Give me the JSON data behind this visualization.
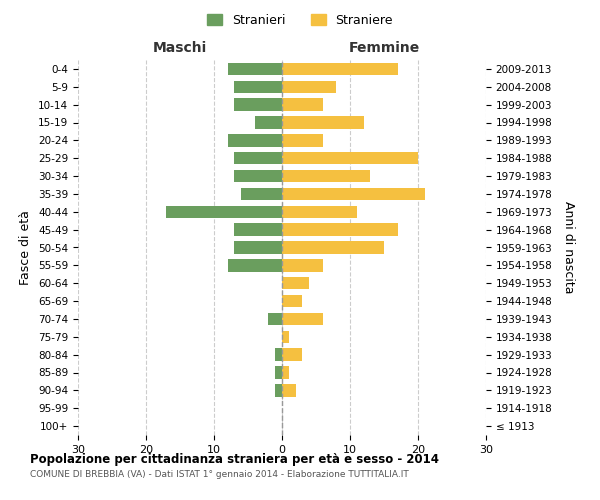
{
  "age_groups": [
    "100+",
    "95-99",
    "90-94",
    "85-89",
    "80-84",
    "75-79",
    "70-74",
    "65-69",
    "60-64",
    "55-59",
    "50-54",
    "45-49",
    "40-44",
    "35-39",
    "30-34",
    "25-29",
    "20-24",
    "15-19",
    "10-14",
    "5-9",
    "0-4"
  ],
  "birth_years": [
    "≤ 1913",
    "1914-1918",
    "1919-1923",
    "1924-1928",
    "1929-1933",
    "1934-1938",
    "1939-1943",
    "1944-1948",
    "1949-1953",
    "1954-1958",
    "1959-1963",
    "1964-1968",
    "1969-1973",
    "1974-1978",
    "1979-1983",
    "1984-1988",
    "1989-1993",
    "1994-1998",
    "1999-2003",
    "2004-2008",
    "2009-2013"
  ],
  "maschi": [
    0,
    0,
    1,
    1,
    1,
    0,
    2,
    0,
    0,
    8,
    7,
    7,
    17,
    6,
    7,
    7,
    8,
    4,
    7,
    7,
    8
  ],
  "femmine": [
    0,
    0,
    2,
    1,
    3,
    1,
    6,
    3,
    4,
    6,
    15,
    17,
    11,
    21,
    13,
    20,
    6,
    12,
    6,
    8,
    17
  ],
  "color_maschi": "#6a9e5e",
  "color_femmine": "#f5c040",
  "title": "Popolazione per cittadinanza straniera per età e sesso - 2014",
  "subtitle": "COMUNE DI BREBBIA (VA) - Dati ISTAT 1° gennaio 2014 - Elaborazione TUTTITALIA.IT",
  "ylabel_left": "Fasce di età",
  "ylabel_right": "Anni di nascita",
  "legend_maschi": "Stranieri",
  "legend_femmine": "Straniere",
  "label_maschi": "Maschi",
  "label_femmine": "Femmine",
  "xlim": 30,
  "background_color": "#ffffff",
  "grid_color": "#cccccc"
}
